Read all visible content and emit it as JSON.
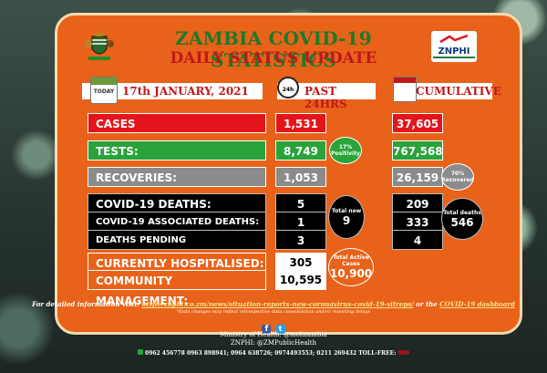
{
  "header": {
    "title": "ZAMBIA COVID-19 STATISTICS",
    "subtitle": "DAILY STATUS UPDATE",
    "date": "17th JANUARY, 2021",
    "calendar_label": "TODAY",
    "clock_label": "24h",
    "past_label": "PAST 24HRS",
    "cumulative_label": "CUMULATIVE",
    "logo_text": "ZNPHI"
  },
  "rows": {
    "cases": {
      "label": "CASES",
      "past": "1,531",
      "cumulative": "37,605"
    },
    "tests": {
      "label": "TESTS:",
      "past": "8,749",
      "cumulative": "767,568",
      "positivity": "17%",
      "positivity_label": "Positivity"
    },
    "recoveries": {
      "label": "RECOVERIES:",
      "past": "1,053",
      "cumulative": "26,159",
      "recovered_pct": "70%",
      "recovered_label": "Recovered"
    },
    "deaths": {
      "label": "COVID-19 DEATHS:",
      "past": "5",
      "cumulative": "209"
    },
    "associated_deaths": {
      "label": "COVID-19 ASSOCIATED DEATHS:",
      "past": "1",
      "cumulative": "333"
    },
    "pending": {
      "label": "DEATHS PENDING CLASSIFICATION:",
      "past": "3",
      "cumulative": "4"
    },
    "total_new": {
      "label": "Total new",
      "value": "9"
    },
    "total_deaths": {
      "label": "Total deaths",
      "value": "546"
    },
    "hospitalised": {
      "label": "CURRENTLY HOSPITALISED:",
      "value": "305"
    },
    "community": {
      "label": "COMMUNITY MANAGEMENT:",
      "value": "10,595"
    },
    "active": {
      "label": "Total Active Cases",
      "value": "10,900"
    }
  },
  "footer": {
    "info_prefix": "For detailed information visit:",
    "info_link": "http://znphi.co.zm/news/situation-reports-new-coronavirus-covid-19-sitreps/",
    "info_mid": "or the",
    "info_dash": "COVID-19 dashboard",
    "disclaimer": "*Data changes may reflect retrospective data consolidation and/or reporting delays",
    "ministry": "Ministry of Health: @mohzambia",
    "znphi": "ZNPHI: @ZMPublicHealth",
    "phones": "0962 456778  0963 898941; 0964 638726; 0974493553; 0211 269432 TOLL-FREE:",
    "tollfree": "909"
  },
  "colors": {
    "panel": "#e8621a",
    "green_title": "#1b7a2a",
    "red": "#e3151a"
  }
}
